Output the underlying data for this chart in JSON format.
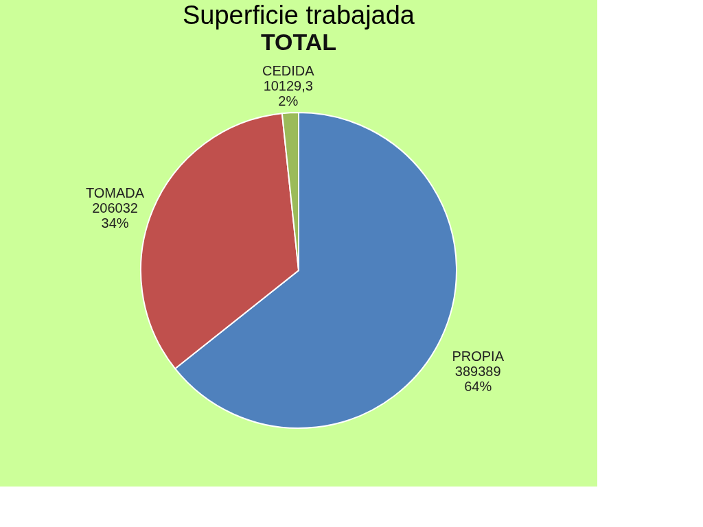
{
  "chart_data": {
    "type": "pie",
    "title": "Superficie trabajada",
    "subtitle": "TOTAL",
    "categories": [
      "PROPIA",
      "TOMADA",
      "CEDIDA"
    ],
    "values": [
      389389,
      206032,
      10129.3
    ],
    "value_labels": [
      "389389\n64%",
      "206032\n34%",
      "10129,3\n2%"
    ],
    "colors": [
      "#4f81bd",
      "#c0504d",
      "#9bbb59"
    ],
    "legend": false
  }
}
